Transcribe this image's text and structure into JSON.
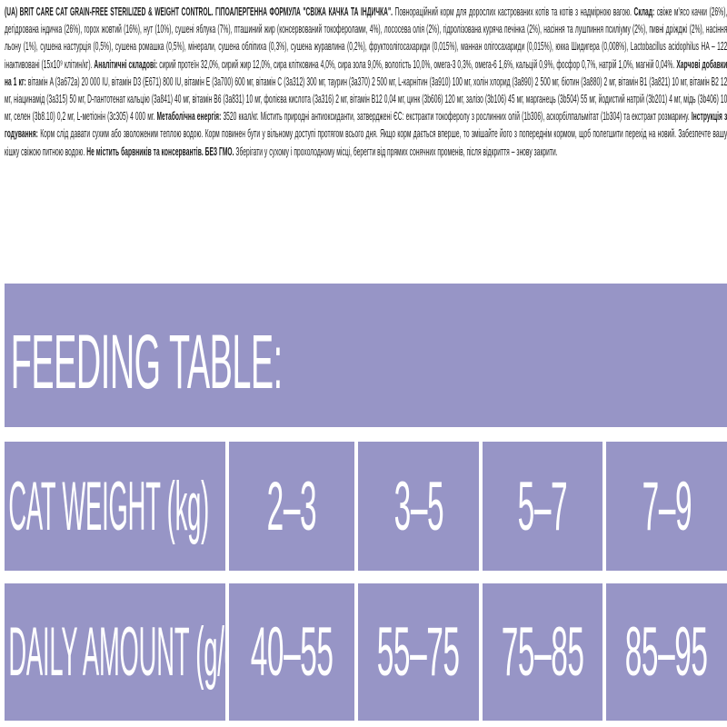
{
  "accent_color": "#9795c6",
  "info_text": {
    "segments": [
      {
        "b": true,
        "t": "(UA) BRIT CARE CAT GRAIN-FREE STERILIZED & WEIGHT CONTROL. ГІПОАЛЕРГЕННА ФОРМУЛА \"СВІЖА КАЧКА ТА ІНДИЧКА\"."
      },
      {
        "b": false,
        "t": " Повнораційний корм для дорослих кастрованих котів та котів з надмірною вагою. "
      },
      {
        "b": true,
        "t": "Склад:"
      },
      {
        "b": false,
        "t": " свіже м'ясо качки (26%), дегідрована індичка (26%), горох жовтий (16%), нут (10%), сушені яблука (7%), пташиний жир (консервований токоферолами, 4%), лососева олія (2%), гідролізована куряча печінка (2%), насіння та лушпиння псиліуму (2%), пивні дріжджі (2%), насіння льону (1%), сушена настурція (0,5%), сушена ромашка (0,5%), мінерали, сушена обліпиха (0,3%), сушена журавлина (0,2%), фруктоолігосахариди (0,015%), маннан олігосахариди (0,015%), юкка Шидигера (0,008%), Lactobacillus acidophilus HA – 122 інактивовані (15x10⁹ клітин/кг). "
      },
      {
        "b": true,
        "t": "Аналітичні складові:"
      },
      {
        "b": false,
        "t": " сирий протеїн 32,0%, сирий жир 12,0%, сира клітковина 4,0%, сира зола 9,0%, вологість 10,0%, омега-3 0,3%, омега-6 1,6%, кальцій 0,9%, фосфор 0,7%, натрій 1,0%, магній 0,04%. "
      },
      {
        "b": true,
        "t": "Харчові добавки на 1 кг:"
      },
      {
        "b": false,
        "t": " вітамін A (3a672a) 20 000 IU, вітамін D3 (E671) 800 IU, вітамін E (3a700) 600 мг, вітамін C (3a312) 300 мг, таурин (3a370) 2 500 мг, L-карнітин (3a910) 100 мг, холін хлорид (3a890) 2 500 мг, біотин (3a880) 2 мг, вітамін B1 (3a821) 10 мг, вітамін B2 12 мг, ніацинамід (3a315) 50 мг, D-пантотенат кальцію (3a841) 40 мг, вітамін B6 (3a831) 10 мг, фолієва кислота (3a316) 2 мг, вітамін B12 0,04 мг, цинк (3b606) 120 мг, залізо (3b106) 45 мг, марганець (3b504) 55 мг, йодистий натрій (3b201) 4 мг, мідь (3b406) 10 мг, селен (3b8.10) 0,2 мг, L-метіонін (3c305) 4 000 мг. "
      },
      {
        "b": true,
        "t": "Метаболічна енергія:"
      },
      {
        "b": false,
        "t": " 3520 ккал/кг. Містить природні антиоксиданти, затверджені ЄС: екстракти токоферолу з рослинних олій (1b306), аскорбілпальмітат (1b304) та екстракт розмарину. "
      },
      {
        "b": true,
        "t": "Інструкція з годування:"
      },
      {
        "b": false,
        "t": " Корм слід давати сухим або зволоженим теплою водою. Корм повинен бути у вільному доступі протягом всього дня. Якщо корм дається вперше, то змішайте його з попереднім кормом, щоб полегшити перехід на новий. Забезпечте вашу кішку свіжою питною водою. "
      },
      {
        "b": true,
        "t": "Не містить барвників та консервантів. БЕЗ ГМО."
      },
      {
        "b": false,
        "t": " Зберігати у сухому і прохолодному місці, берегти від прямих сонячних променів, після відкриття – знову закрити."
      }
    ]
  },
  "feeding_table": {
    "title": "FEEDING TABLE:",
    "rows": [
      {
        "label": "CAT WEIGHT (kg)",
        "values": [
          "2–3",
          "3–5",
          "5–7",
          "7–9"
        ]
      },
      {
        "label": "DAILY AMOUNT (g/day)",
        "values": [
          "40–55",
          "55–75",
          "75–85",
          "85–95"
        ]
      }
    ]
  },
  "chart_data": {
    "type": "table",
    "title": "FEEDING TABLE:",
    "categories": [
      "2–3",
      "3–5",
      "5–7",
      "7–9"
    ],
    "series": [
      {
        "name": "CAT WEIGHT (kg)",
        "values": [
          "2–3",
          "3–5",
          "5–7",
          "7–9"
        ]
      },
      {
        "name": "DAILY AMOUNT (g/day)",
        "values": [
          "40–55",
          "55–75",
          "75–85",
          "85–95"
        ]
      }
    ]
  }
}
